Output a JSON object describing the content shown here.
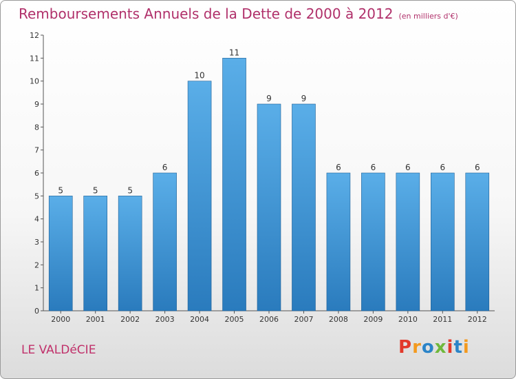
{
  "header": {
    "title": "Remboursements Annuels de la Dette de 2000 à 2012",
    "unit": "(en milliers d'€)"
  },
  "footer": {
    "commune": "LE VALDéCIE",
    "logo_text": "Proxiti",
    "logo_colors": [
      "#e2392b",
      "#f39a1f",
      "#2b84c8",
      "#6fb83b",
      "#e2392b",
      "#2b84c8",
      "#f39a1f"
    ]
  },
  "chart_data": {
    "type": "bar",
    "title": "Remboursements Annuels de la Dette de 2000 à 2012",
    "categories": [
      "2000",
      "2001",
      "2002",
      "2003",
      "2004",
      "2005",
      "2006",
      "2007",
      "2008",
      "2009",
      "2010",
      "2011",
      "2012"
    ],
    "values": [
      5,
      5,
      5,
      6,
      10,
      11,
      9,
      9,
      6,
      6,
      6,
      6,
      6
    ],
    "value_labels": [
      "5",
      "5",
      "5",
      "6",
      "10",
      "11",
      "9",
      "9",
      "6",
      "6",
      "6",
      "6",
      "6"
    ],
    "y_ticks": [
      "0",
      "1",
      "2",
      "3",
      "4",
      "5",
      "6",
      "7",
      "8",
      "9",
      "10",
      "11",
      "12"
    ],
    "ylim": [
      0,
      12
    ],
    "grid": false,
    "bar_color_top": "#5aaee8",
    "bar_color_bottom": "#2a7bbd"
  }
}
